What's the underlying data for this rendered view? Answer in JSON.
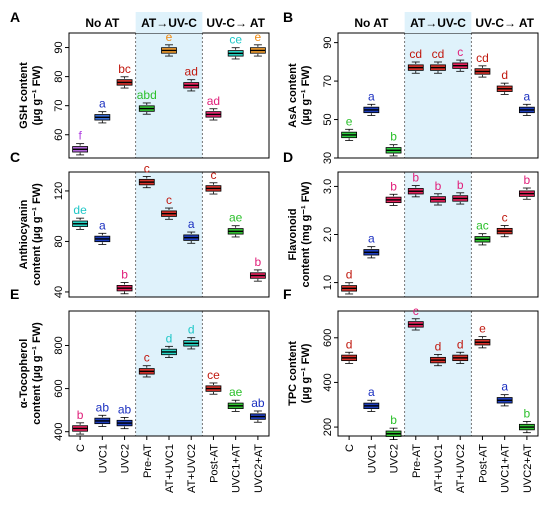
{
  "figure": {
    "header_groups": [
      "No AT",
      "AT→UV-C",
      "UV-C→ AT"
    ],
    "x_categories": [
      "C",
      "UVC1",
      "UVC2",
      "Pre-AT",
      "AT+UVC1",
      "AT+UVC2",
      "Post-AT",
      "UVC1+AT",
      "UVC2+AT"
    ],
    "group_colors": [
      "#8e44ad",
      "#1f3fbf",
      "#d62c1a",
      "#2ecc40",
      "#f39c12",
      "#e8205f",
      "#e91e63",
      "#1fd6c4"
    ],
    "shade_color": "#dff2fb"
  },
  "chart_data": [
    {
      "panel": "A",
      "type": "box",
      "ylabel_line1": "GSH content",
      "ylabel_line2": "(µg g⁻¹ FW)",
      "ylim": [
        52,
        95
      ],
      "yticks": [
        60,
        70,
        80,
        90
      ],
      "categories": [
        "C",
        "UVC1",
        "UVC2",
        "Pre-AT",
        "AT+UVC1",
        "AT+UVC2",
        "Post-AT",
        "UVC1+AT",
        "UVC2+AT"
      ],
      "values": [
        55,
        66,
        78,
        69,
        89,
        77,
        67,
        88,
        89
      ],
      "letters": [
        "f",
        "a",
        "bc",
        "abd",
        "e",
        "ad",
        "ad",
        "ce",
        "e"
      ],
      "box_colors": [
        "#b266d9",
        "#3b6fd6",
        "#d9322b",
        "#33c433",
        "#f5a030",
        "#e8245e",
        "#e8246e",
        "#29d4c4",
        "#f5a030"
      ],
      "letter_colors": [
        "#b040e0",
        "#1a2fc0",
        "#c0180e",
        "#2cc02c",
        "#f08a10",
        "#c0180e",
        "#e01f7a",
        "#1ec7c7",
        "#f08a10"
      ]
    },
    {
      "panel": "B",
      "type": "box",
      "ylabel_line1": "AsA content",
      "ylabel_line2": "(µg g⁻¹ FW)",
      "ylim": [
        30,
        95
      ],
      "yticks": [
        30,
        50,
        70,
        90
      ],
      "categories": [
        "C",
        "UVC1",
        "UVC2",
        "Pre-AT",
        "AT+UVC1",
        "AT+UVC2",
        "Post-AT",
        "UVC1+AT",
        "UVC2+AT"
      ],
      "values": [
        42,
        55,
        34,
        77,
        77,
        78,
        75,
        66,
        55
      ],
      "letters": [
        "e",
        "a",
        "b",
        "cd",
        "cd",
        "c",
        "cd",
        "d",
        "a"
      ],
      "box_colors": [
        "#2ecc40",
        "#1f3fbf",
        "#2ecc40",
        "#d9322b",
        "#d9322b",
        "#e8245e",
        "#d9322b",
        "#d9322b",
        "#1f3fbf"
      ],
      "letter_colors": [
        "#2cc02c",
        "#1a2fc0",
        "#2cc02c",
        "#c0180e",
        "#c0180e",
        "#e01f7a",
        "#c0180e",
        "#c0180e",
        "#1a2fc0"
      ]
    },
    {
      "panel": "C",
      "type": "box",
      "ylabel_line1": "Anthiocyanin",
      "ylabel_line2": "content (µg g⁻¹ FW)",
      "ylim": [
        36,
        135
      ],
      "yticks": [
        40,
        80,
        120
      ],
      "categories": [
        "C",
        "UVC1",
        "UVC2",
        "Pre-AT",
        "AT+UVC1",
        "AT+UVC2",
        "Post-AT",
        "UVC1+AT",
        "UVC2+AT"
      ],
      "values": [
        94,
        82,
        43,
        127,
        102,
        83,
        122,
        88,
        53
      ],
      "letters": [
        "de",
        "a",
        "b",
        "c",
        "c",
        "a",
        "c",
        "ae",
        "b"
      ],
      "box_colors": [
        "#29d4c4",
        "#1f3fbf",
        "#e8245e",
        "#d9322b",
        "#d9322b",
        "#1f3fbf",
        "#d9322b",
        "#33c433",
        "#e8245e"
      ],
      "letter_colors": [
        "#1ec7c7",
        "#1a2fc0",
        "#e01f7a",
        "#c0180e",
        "#c0180e",
        "#1a2fc0",
        "#c0180e",
        "#2cc02c",
        "#e01f7a"
      ]
    },
    {
      "panel": "D",
      "type": "box",
      "ylabel_line1": "Flavonoid",
      "ylabel_line2": "content (mg g⁻¹ FW)",
      "ylim": [
        0.7,
        3.3
      ],
      "yticks": [
        "1.0",
        "2.0",
        "3.0"
      ],
      "categories": [
        "C",
        "UVC1",
        "UVC2",
        "Pre-AT",
        "AT+UVC1",
        "AT+UVC2",
        "Post-AT",
        "UVC1+AT",
        "UVC2+AT"
      ],
      "values": [
        0.88,
        1.63,
        2.72,
        2.9,
        2.73,
        2.75,
        1.9,
        2.07,
        2.85
      ],
      "letters": [
        "d",
        "a",
        "b",
        "b",
        "b",
        "b",
        "ac",
        "c",
        "b"
      ],
      "box_colors": [
        "#d9322b",
        "#1f3fbf",
        "#e8245e",
        "#e8245e",
        "#e8245e",
        "#e8245e",
        "#33c433",
        "#d9322b",
        "#e8245e"
      ],
      "letter_colors": [
        "#c0180e",
        "#1a2fc0",
        "#e01f7a",
        "#e01f7a",
        "#e01f7a",
        "#e01f7a",
        "#2cc02c",
        "#c0180e",
        "#e01f7a"
      ]
    },
    {
      "panel": "E",
      "type": "box",
      "ylabel_line1": "α-Tocopherol",
      "ylabel_line2": "content (µg g⁻¹ FW)",
      "ylim": [
        380,
        960
      ],
      "yticks": [
        400,
        600,
        800
      ],
      "categories": [
        "C",
        "UVC1",
        "UVC2",
        "Pre-AT",
        "AT+UVC1",
        "AT+UVC2",
        "Post-AT",
        "UVC1+AT",
        "UVC2+AT"
      ],
      "values": [
        415,
        450,
        440,
        680,
        770,
        810,
        600,
        520,
        470
      ],
      "letters": [
        "b",
        "ab",
        "ab",
        "c",
        "d",
        "d",
        "ce",
        "ae",
        "ab"
      ],
      "box_colors": [
        "#e8245e",
        "#1f3fbf",
        "#1f3fbf",
        "#d9322b",
        "#29d4c4",
        "#29d4c4",
        "#d9322b",
        "#33c433",
        "#1f3fbf"
      ],
      "letter_colors": [
        "#e01f7a",
        "#1a2fc0",
        "#1a2fc0",
        "#c0180e",
        "#1ec7c7",
        "#1ec7c7",
        "#c0180e",
        "#2cc02c",
        "#1a2fc0"
      ]
    },
    {
      "panel": "F",
      "type": "box",
      "ylabel_line1": "TPC content",
      "ylabel_line2": "(µg g⁻¹ FW)",
      "ylim": [
        160,
        720
      ],
      "yticks": [
        200,
        400,
        600
      ],
      "categories": [
        "C",
        "UVC1",
        "UVC2",
        "Pre-AT",
        "AT+UVC1",
        "AT+UVC2",
        "Post-AT",
        "UVC1+AT",
        "UVC2+AT"
      ],
      "values": [
        510,
        295,
        170,
        660,
        500,
        510,
        580,
        320,
        200
      ],
      "letters": [
        "d",
        "a",
        "b",
        "c",
        "d",
        "d",
        "e",
        "a",
        "b"
      ],
      "box_colors": [
        "#d9322b",
        "#1f3fbf",
        "#33c433",
        "#e8245e",
        "#d9322b",
        "#d9322b",
        "#d9322b",
        "#1f3fbf",
        "#33c433"
      ],
      "letter_colors": [
        "#c0180e",
        "#1a2fc0",
        "#2cc02c",
        "#e01f7a",
        "#c0180e",
        "#c0180e",
        "#c0180e",
        "#1a2fc0",
        "#2cc02c"
      ]
    }
  ]
}
